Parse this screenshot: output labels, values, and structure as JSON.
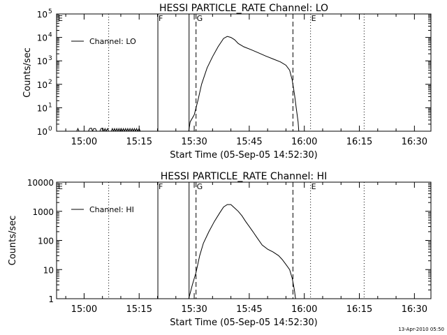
{
  "footer_timestamp": "13-Apr-2010 05:50",
  "chart_data": [
    {
      "type": "line",
      "title": "HESSI PARTICLE_RATE Channel: LO",
      "xlabel": "Start Time (05-Sep-05 14:52:30)",
      "ylabel": "Counts/sec",
      "x_unit": "minutes after 14:52:30",
      "xlim": [
        0,
        102
      ],
      "yscale": "log",
      "ylim": [
        1,
        100000
      ],
      "x_ticks": [
        {
          "label": "15:00",
          "value": 7.5
        },
        {
          "label": "15:15",
          "value": 22.5
        },
        {
          "label": "15:30",
          "value": 37.5
        },
        {
          "label": "15:45",
          "value": 52.5
        },
        {
          "label": "16:00",
          "value": 67.5
        },
        {
          "label": "16:15",
          "value": 82.5
        },
        {
          "label": "16:30",
          "value": 97.5
        }
      ],
      "y_ticks": [
        {
          "value": 1,
          "label": "10",
          "sup": "0"
        },
        {
          "value": 10,
          "label": "10",
          "sup": "1"
        },
        {
          "value": 100,
          "label": "10",
          "sup": "2"
        },
        {
          "value": 1000,
          "label": "10",
          "sup": "3"
        },
        {
          "value": 10000,
          "label": "10",
          "sup": "4"
        },
        {
          "value": 100000,
          "label": "10",
          "sup": "5"
        }
      ],
      "legend": {
        "position": "top-left",
        "entries": [
          "Channel: LO"
        ]
      },
      "markers": [
        {
          "label": "E",
          "x": 0.2,
          "style": "none"
        },
        {
          "label": "",
          "x": 14.2,
          "style": "dotted"
        },
        {
          "label": "F",
          "x": 27.6,
          "style": "solid"
        },
        {
          "label": "",
          "x": 36.1,
          "style": "solid"
        },
        {
          "label": "G",
          "x": 38.0,
          "style": "dashed"
        },
        {
          "label": "",
          "x": 64.4,
          "style": "dashed"
        },
        {
          "label": "E",
          "x": 69.2,
          "style": "dotted"
        },
        {
          "label": "",
          "x": 83.8,
          "style": "dotted"
        }
      ],
      "series": [
        {
          "values": [
            [
              5.5,
              1
            ],
            [
              5.8,
              1.3
            ],
            [
              6.1,
              1
            ],
            [
              8.7,
              1
            ],
            [
              9.0,
              1.3
            ],
            [
              9.5,
              1.35
            ],
            [
              9.8,
              1
            ],
            [
              10.1,
              1.3
            ],
            [
              10.6,
              1.3
            ],
            [
              10.9,
              1
            ],
            [
              11.8,
              1
            ],
            [
              12.1,
              1.3
            ],
            [
              12.6,
              1.35
            ],
            [
              12.9,
              1
            ],
            [
              13.2,
              1.3
            ],
            [
              13.5,
              1
            ],
            [
              13.9,
              1.3
            ],
            [
              14.2,
              1
            ],
            [
              14.9,
              1
            ],
            [
              15.2,
              1.3
            ],
            [
              15.5,
              1
            ],
            [
              15.8,
              1.3
            ],
            [
              16.1,
              1
            ],
            [
              16.4,
              1.3
            ],
            [
              16.7,
              1
            ],
            [
              17.0,
              1.3
            ],
            [
              17.3,
              1
            ],
            [
              17.6,
              1.3
            ],
            [
              17.9,
              1
            ],
            [
              18.2,
              1.3
            ],
            [
              18.5,
              1
            ],
            [
              18.8,
              1.3
            ],
            [
              19.1,
              1
            ],
            [
              19.4,
              1.3
            ],
            [
              19.7,
              1
            ],
            [
              20.0,
              1.3
            ],
            [
              20.3,
              1
            ],
            [
              20.6,
              1.3
            ],
            [
              20.9,
              1
            ],
            [
              21.2,
              1.3
            ],
            [
              21.5,
              1
            ],
            [
              21.8,
              1.3
            ],
            [
              22.1,
              1
            ],
            [
              22.5,
              1.3
            ],
            [
              22.8,
              1
            ]
          ]
        },
        {
          "values": [
            [
              36.0,
              1
            ],
            [
              36.4,
              2.5
            ],
            [
              37.5,
              5
            ],
            [
              38.5,
              20
            ],
            [
              39.5,
              100
            ],
            [
              41,
              500
            ],
            [
              42.5,
              1500
            ],
            [
              44,
              4000
            ],
            [
              45.5,
              9000
            ],
            [
              46.5,
              11000
            ],
            [
              47.5,
              10000
            ],
            [
              48.5,
              8000
            ],
            [
              49.5,
              5500
            ],
            [
              51,
              4000
            ],
            [
              53,
              3000
            ],
            [
              55,
              2200
            ],
            [
              57,
              1600
            ],
            [
              59,
              1200
            ],
            [
              61,
              900
            ],
            [
              62.5,
              650
            ],
            [
              63.5,
              400
            ],
            [
              64.2,
              150
            ],
            [
              64.8,
              40
            ],
            [
              65.3,
              10
            ],
            [
              65.8,
              2.5
            ],
            [
              66.0,
              1
            ]
          ]
        }
      ]
    },
    {
      "type": "line",
      "title": "HESSI PARTICLE_RATE Channel: HI",
      "xlabel": "Start Time (05-Sep-05 14:52:30)",
      "ylabel": "Counts/sec",
      "x_unit": "minutes after 14:52:30",
      "xlim": [
        0,
        102
      ],
      "yscale": "log",
      "ylim": [
        1,
        10000
      ],
      "x_ticks": [
        {
          "label": "15:00",
          "value": 7.5
        },
        {
          "label": "15:15",
          "value": 22.5
        },
        {
          "label": "15:30",
          "value": 37.5
        },
        {
          "label": "15:45",
          "value": 52.5
        },
        {
          "label": "16:00",
          "value": 67.5
        },
        {
          "label": "16:15",
          "value": 82.5
        },
        {
          "label": "16:30",
          "value": 97.5
        }
      ],
      "y_ticks": [
        {
          "value": 1,
          "label": "1",
          "sup": ""
        },
        {
          "value": 10,
          "label": "10",
          "sup": ""
        },
        {
          "value": 100,
          "label": "100",
          "sup": ""
        },
        {
          "value": 1000,
          "label": "1000",
          "sup": ""
        },
        {
          "value": 10000,
          "label": "10000",
          "sup": ""
        }
      ],
      "legend": {
        "position": "top-left",
        "entries": [
          "Channel: HI"
        ]
      },
      "markers": [
        {
          "label": "E",
          "x": 0.2,
          "style": "none"
        },
        {
          "label": "",
          "x": 14.2,
          "style": "dotted"
        },
        {
          "label": "F",
          "x": 27.6,
          "style": "solid"
        },
        {
          "label": "",
          "x": 36.1,
          "style": "solid"
        },
        {
          "label": "G",
          "x": 38.0,
          "style": "dashed"
        },
        {
          "label": "",
          "x": 64.4,
          "style": "dashed"
        },
        {
          "label": "E",
          "x": 69.2,
          "style": "dotted"
        },
        {
          "label": "",
          "x": 83.8,
          "style": "dotted"
        }
      ],
      "series": [
        {
          "values": [
            [
              36.0,
              1
            ],
            [
              37.0,
              3
            ],
            [
              38.0,
              8
            ],
            [
              39.0,
              30
            ],
            [
              40.0,
              80
            ],
            [
              41.5,
              200
            ],
            [
              43.0,
              450
            ],
            [
              44.5,
              900
            ],
            [
              45.5,
              1400
            ],
            [
              46.5,
              1700
            ],
            [
              47.5,
              1700
            ],
            [
              48.5,
              1300
            ],
            [
              49.5,
              1000
            ],
            [
              50.5,
              700
            ],
            [
              51.5,
              450
            ],
            [
              52.5,
              300
            ],
            [
              53.5,
              200
            ],
            [
              54.5,
              130
            ],
            [
              56,
              70
            ],
            [
              57.5,
              50
            ],
            [
              59,
              40
            ],
            [
              60.5,
              30
            ],
            [
              61.5,
              22
            ],
            [
              62.5,
              15
            ],
            [
              63.5,
              10
            ],
            [
              64.2,
              5
            ],
            [
              64.8,
              2
            ],
            [
              65.1,
              1
            ]
          ]
        }
      ]
    }
  ]
}
